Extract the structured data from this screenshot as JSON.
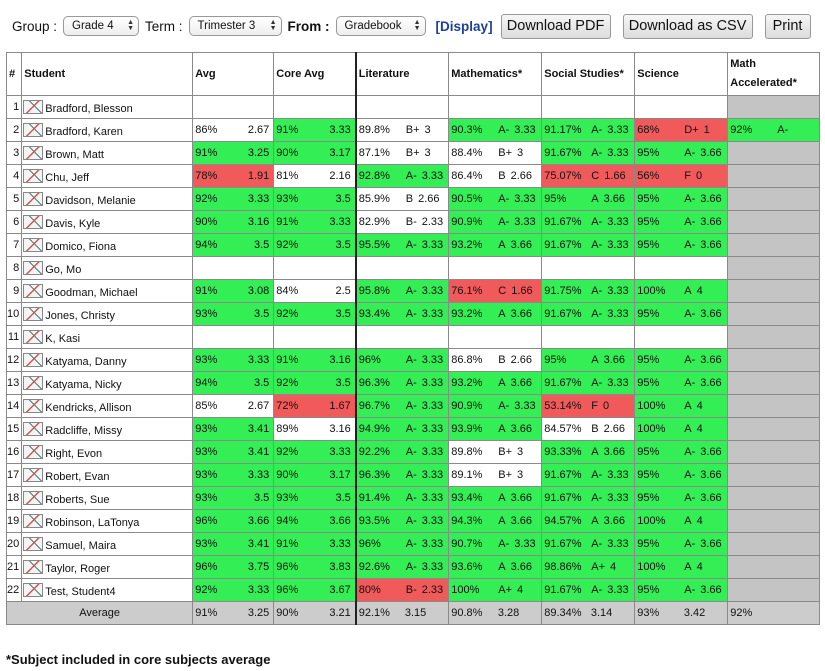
{
  "toolbar": {
    "group_label": "Group :",
    "group_value": "Grade 4",
    "term_label": "Term :",
    "term_value": "Trimester 3",
    "from_label": "From :",
    "from_value": "Gradebook",
    "display_link": "[Display]",
    "download_pdf": "Download PDF",
    "download_csv": "Download as CSV",
    "print": "Print"
  },
  "table": {
    "headers": [
      "#",
      "Student",
      "Avg",
      "Core Avg",
      "Literature",
      "Mathematics*",
      "Social Studies*",
      "Science",
      "Math Accelerated*"
    ],
    "rows": [
      {
        "n": "1",
        "name": "Bradford, Blesson",
        "avg": null,
        "core": null,
        "lit": null,
        "math": null,
        "ss": null,
        "sci": null,
        "ma": null
      },
      {
        "n": "2",
        "name": "Bradford, Karen",
        "avg": {
          "p": "86%",
          "g": "2.67",
          "c": "w"
        },
        "core": {
          "p": "91%",
          "g": "3.33",
          "c": "g"
        },
        "lit": {
          "p": "89.8%",
          "l": "B+",
          "gp": "3",
          "c": "w"
        },
        "math": {
          "p": "90.3%",
          "l": "A-",
          "gp": "3.33",
          "c": "g"
        },
        "ss": {
          "p": "91.17%",
          "l": "A-",
          "gp": "3.33",
          "c": "g"
        },
        "sci": {
          "p": "68%",
          "l": "D+",
          "gp": "1",
          "c": "r"
        },
        "ma": {
          "p": "92%",
          "l": "A-",
          "gp": "",
          "c": "g"
        }
      },
      {
        "n": "3",
        "name": "Brown, Matt",
        "avg": {
          "p": "91%",
          "g": "3.25",
          "c": "g"
        },
        "core": {
          "p": "90%",
          "g": "3.17",
          "c": "g"
        },
        "lit": {
          "p": "87.1%",
          "l": "B+",
          "gp": "3",
          "c": "w"
        },
        "math": {
          "p": "88.4%",
          "l": "B+",
          "gp": "3",
          "c": "w"
        },
        "ss": {
          "p": "91.67%",
          "l": "A-",
          "gp": "3.33",
          "c": "g"
        },
        "sci": {
          "p": "95%",
          "l": "A-",
          "gp": "3.66",
          "c": "g"
        },
        "ma": null
      },
      {
        "n": "4",
        "name": "Chu, Jeff",
        "avg": {
          "p": "78%",
          "g": "1.91",
          "c": "r"
        },
        "core": {
          "p": "81%",
          "g": "2.16",
          "c": "w"
        },
        "lit": {
          "p": "92.8%",
          "l": "A-",
          "gp": "3.33",
          "c": "g"
        },
        "math": {
          "p": "86.4%",
          "l": "B",
          "gp": "2.66",
          "c": "w"
        },
        "ss": {
          "p": "75.07%",
          "l": "C",
          "gp": "1.66",
          "c": "r"
        },
        "sci": {
          "p": "56%",
          "l": "F",
          "gp": "0",
          "c": "r"
        },
        "ma": null
      },
      {
        "n": "5",
        "name": "Davidson, Melanie",
        "avg": {
          "p": "92%",
          "g": "3.33",
          "c": "g"
        },
        "core": {
          "p": "93%",
          "g": "3.5",
          "c": "g"
        },
        "lit": {
          "p": "85.9%",
          "l": "B",
          "gp": "2.66",
          "c": "w"
        },
        "math": {
          "p": "90.5%",
          "l": "A-",
          "gp": "3.33",
          "c": "g"
        },
        "ss": {
          "p": "95%",
          "l": "A",
          "gp": "3.66",
          "c": "g"
        },
        "sci": {
          "p": "95%",
          "l": "A-",
          "gp": "3.66",
          "c": "g"
        },
        "ma": null
      },
      {
        "n": "6",
        "name": "Davis, Kyle",
        "avg": {
          "p": "90%",
          "g": "3.16",
          "c": "g"
        },
        "core": {
          "p": "91%",
          "g": "3.33",
          "c": "g"
        },
        "lit": {
          "p": "82.9%",
          "l": "B-",
          "gp": "2.33",
          "c": "w"
        },
        "math": {
          "p": "90.9%",
          "l": "A-",
          "gp": "3.33",
          "c": "g"
        },
        "ss": {
          "p": "91.67%",
          "l": "A-",
          "gp": "3.33",
          "c": "g"
        },
        "sci": {
          "p": "95%",
          "l": "A-",
          "gp": "3.66",
          "c": "g"
        },
        "ma": null
      },
      {
        "n": "7",
        "name": "Domico, Fiona",
        "avg": {
          "p": "94%",
          "g": "3.5",
          "c": "g"
        },
        "core": {
          "p": "92%",
          "g": "3.5",
          "c": "g"
        },
        "lit": {
          "p": "95.5%",
          "l": "A-",
          "gp": "3.33",
          "c": "g"
        },
        "math": {
          "p": "93.2%",
          "l": "A",
          "gp": "3.66",
          "c": "g"
        },
        "ss": {
          "p": "91.67%",
          "l": "A-",
          "gp": "3.33",
          "c": "g"
        },
        "sci": {
          "p": "95%",
          "l": "A-",
          "gp": "3.66",
          "c": "g"
        },
        "ma": null
      },
      {
        "n": "8",
        "name": "Go, Mo",
        "avg": null,
        "core": null,
        "lit": null,
        "math": null,
        "ss": null,
        "sci": null,
        "ma": null
      },
      {
        "n": "9",
        "name": "Goodman, Michael",
        "avg": {
          "p": "91%",
          "g": "3.08",
          "c": "g"
        },
        "core": {
          "p": "84%",
          "g": "2.5",
          "c": "w"
        },
        "lit": {
          "p": "95.8%",
          "l": "A-",
          "gp": "3.33",
          "c": "g"
        },
        "math": {
          "p": "76.1%",
          "l": "C",
          "gp": "1.66",
          "c": "r"
        },
        "ss": {
          "p": "91.75%",
          "l": "A-",
          "gp": "3.33",
          "c": "g"
        },
        "sci": {
          "p": "100%",
          "l": "A",
          "gp": "4",
          "c": "g"
        },
        "ma": null
      },
      {
        "n": "10",
        "name": "Jones, Christy",
        "avg": {
          "p": "93%",
          "g": "3.5",
          "c": "g"
        },
        "core": {
          "p": "92%",
          "g": "3.5",
          "c": "g"
        },
        "lit": {
          "p": "93.4%",
          "l": "A-",
          "gp": "3.33",
          "c": "g"
        },
        "math": {
          "p": "93.2%",
          "l": "A",
          "gp": "3.66",
          "c": "g"
        },
        "ss": {
          "p": "91.67%",
          "l": "A-",
          "gp": "3.33",
          "c": "g"
        },
        "sci": {
          "p": "95%",
          "l": "A-",
          "gp": "3.66",
          "c": "g"
        },
        "ma": null
      },
      {
        "n": "11",
        "name": "K, Kasi",
        "avg": null,
        "core": null,
        "lit": null,
        "math": null,
        "ss": null,
        "sci": null,
        "ma": null
      },
      {
        "n": "12",
        "name": "Katyama, Danny",
        "avg": {
          "p": "93%",
          "g": "3.33",
          "c": "g"
        },
        "core": {
          "p": "91%",
          "g": "3.16",
          "c": "g"
        },
        "lit": {
          "p": "96%",
          "l": "A-",
          "gp": "3.33",
          "c": "g"
        },
        "math": {
          "p": "86.8%",
          "l": "B",
          "gp": "2.66",
          "c": "w"
        },
        "ss": {
          "p": "95%",
          "l": "A",
          "gp": "3.66",
          "c": "g"
        },
        "sci": {
          "p": "95%",
          "l": "A-",
          "gp": "3.66",
          "c": "g"
        },
        "ma": null
      },
      {
        "n": "13",
        "name": "Katyama, Nicky",
        "avg": {
          "p": "94%",
          "g": "3.5",
          "c": "g"
        },
        "core": {
          "p": "92%",
          "g": "3.5",
          "c": "g"
        },
        "lit": {
          "p": "96.3%",
          "l": "A-",
          "gp": "3.33",
          "c": "g"
        },
        "math": {
          "p": "93.2%",
          "l": "A",
          "gp": "3.66",
          "c": "g"
        },
        "ss": {
          "p": "91.67%",
          "l": "A-",
          "gp": "3.33",
          "c": "g"
        },
        "sci": {
          "p": "95%",
          "l": "A-",
          "gp": "3.66",
          "c": "g"
        },
        "ma": null
      },
      {
        "n": "14",
        "name": "Kendricks, Allison",
        "avg": {
          "p": "85%",
          "g": "2.67",
          "c": "w"
        },
        "core": {
          "p": "72%",
          "g": "1.67",
          "c": "r"
        },
        "lit": {
          "p": "96.7%",
          "l": "A-",
          "gp": "3.33",
          "c": "g"
        },
        "math": {
          "p": "90.9%",
          "l": "A-",
          "gp": "3.33",
          "c": "g"
        },
        "ss": {
          "p": "53.14%",
          "l": "F",
          "gp": "0",
          "c": "r"
        },
        "sci": {
          "p": "100%",
          "l": "A",
          "gp": "4",
          "c": "g"
        },
        "ma": null
      },
      {
        "n": "15",
        "name": "Radcliffe, Missy",
        "avg": {
          "p": "93%",
          "g": "3.41",
          "c": "g"
        },
        "core": {
          "p": "89%",
          "g": "3.16",
          "c": "w"
        },
        "lit": {
          "p": "94.9%",
          "l": "A-",
          "gp": "3.33",
          "c": "g"
        },
        "math": {
          "p": "93.9%",
          "l": "A",
          "gp": "3.66",
          "c": "g"
        },
        "ss": {
          "p": "84.57%",
          "l": "B",
          "gp": "2.66",
          "c": "w"
        },
        "sci": {
          "p": "100%",
          "l": "A",
          "gp": "4",
          "c": "g"
        },
        "ma": null
      },
      {
        "n": "16",
        "name": "Right, Evon",
        "avg": {
          "p": "93%",
          "g": "3.41",
          "c": "g"
        },
        "core": {
          "p": "92%",
          "g": "3.33",
          "c": "g"
        },
        "lit": {
          "p": "92.2%",
          "l": "A-",
          "gp": "3.33",
          "c": "g"
        },
        "math": {
          "p": "89.8%",
          "l": "B+",
          "gp": "3",
          "c": "w"
        },
        "ss": {
          "p": "93.33%",
          "l": "A",
          "gp": "3.66",
          "c": "g"
        },
        "sci": {
          "p": "95%",
          "l": "A-",
          "gp": "3.66",
          "c": "g"
        },
        "ma": null
      },
      {
        "n": "17",
        "name": "Robert, Evan",
        "avg": {
          "p": "93%",
          "g": "3.33",
          "c": "g"
        },
        "core": {
          "p": "90%",
          "g": "3.17",
          "c": "g"
        },
        "lit": {
          "p": "96.3%",
          "l": "A-",
          "gp": "3.33",
          "c": "g"
        },
        "math": {
          "p": "89.1%",
          "l": "B+",
          "gp": "3",
          "c": "w"
        },
        "ss": {
          "p": "91.67%",
          "l": "A-",
          "gp": "3.33",
          "c": "g"
        },
        "sci": {
          "p": "95%",
          "l": "A-",
          "gp": "3.66",
          "c": "g"
        },
        "ma": null
      },
      {
        "n": "18",
        "name": "Roberts, Sue",
        "avg": {
          "p": "93%",
          "g": "3.5",
          "c": "g"
        },
        "core": {
          "p": "93%",
          "g": "3.5",
          "c": "g"
        },
        "lit": {
          "p": "91.4%",
          "l": "A-",
          "gp": "3.33",
          "c": "g"
        },
        "math": {
          "p": "93.4%",
          "l": "A",
          "gp": "3.66",
          "c": "g"
        },
        "ss": {
          "p": "91.67%",
          "l": "A-",
          "gp": "3.33",
          "c": "g"
        },
        "sci": {
          "p": "95%",
          "l": "A-",
          "gp": "3.66",
          "c": "g"
        },
        "ma": null
      },
      {
        "n": "19",
        "name": "Robinson, LaTonya",
        "avg": {
          "p": "96%",
          "g": "3.66",
          "c": "g"
        },
        "core": {
          "p": "94%",
          "g": "3.66",
          "c": "g"
        },
        "lit": {
          "p": "93.5%",
          "l": "A-",
          "gp": "3.33",
          "c": "g"
        },
        "math": {
          "p": "94.3%",
          "l": "A",
          "gp": "3.66",
          "c": "g"
        },
        "ss": {
          "p": "94.57%",
          "l": "A",
          "gp": "3.66",
          "c": "g"
        },
        "sci": {
          "p": "100%",
          "l": "A",
          "gp": "4",
          "c": "g"
        },
        "ma": null
      },
      {
        "n": "20",
        "name": "Samuel, Maira",
        "avg": {
          "p": "93%",
          "g": "3.41",
          "c": "g"
        },
        "core": {
          "p": "91%",
          "g": "3.33",
          "c": "g"
        },
        "lit": {
          "p": "96%",
          "l": "A-",
          "gp": "3.33",
          "c": "g"
        },
        "math": {
          "p": "90.7%",
          "l": "A-",
          "gp": "3.33",
          "c": "g"
        },
        "ss": {
          "p": "91.67%",
          "l": "A-",
          "gp": "3.33",
          "c": "g"
        },
        "sci": {
          "p": "95%",
          "l": "A-",
          "gp": "3.66",
          "c": "g"
        },
        "ma": null
      },
      {
        "n": "21",
        "name": "Taylor, Roger",
        "avg": {
          "p": "96%",
          "g": "3.75",
          "c": "g"
        },
        "core": {
          "p": "96%",
          "g": "3.83",
          "c": "g"
        },
        "lit": {
          "p": "92.6%",
          "l": "A-",
          "gp": "3.33",
          "c": "g"
        },
        "math": {
          "p": "93.6%",
          "l": "A",
          "gp": "3.66",
          "c": "g"
        },
        "ss": {
          "p": "98.86%",
          "l": "A+",
          "gp": "4",
          "c": "g"
        },
        "sci": {
          "p": "100%",
          "l": "A",
          "gp": "4",
          "c": "g"
        },
        "ma": null
      },
      {
        "n": "22",
        "name": "Test, Student4",
        "avg": {
          "p": "92%",
          "g": "3.33",
          "c": "g"
        },
        "core": {
          "p": "96%",
          "g": "3.67",
          "c": "g"
        },
        "lit": {
          "p": "80%",
          "l": "B-",
          "gp": "2.33",
          "c": "r"
        },
        "math": {
          "p": "100%",
          "l": "A+",
          "gp": "4",
          "c": "g"
        },
        "ss": {
          "p": "91.67%",
          "l": "A-",
          "gp": "3.33",
          "c": "g"
        },
        "sci": {
          "p": "95%",
          "l": "A-",
          "gp": "3.66",
          "c": "g"
        },
        "ma": null
      }
    ],
    "average_row": {
      "label": "Average",
      "avg": {
        "p": "91%",
        "g": "3.25"
      },
      "core": {
        "p": "90%",
        "g": "3.21"
      },
      "lit": {
        "p": "92.1%",
        "g": "3.15"
      },
      "math": {
        "p": "90.8%",
        "g": "3.28"
      },
      "ss": {
        "p": "89.34%",
        "g": "3.14"
      },
      "sci": {
        "p": "93%",
        "g": "3.42"
      },
      "ma": {
        "p": "92%",
        "g": ""
      }
    }
  },
  "footer_note": "*Subject included in core subjects average",
  "colors": {
    "good": "#33ee55",
    "bad": "#f05a5a",
    "na": "#c4c4c4"
  }
}
